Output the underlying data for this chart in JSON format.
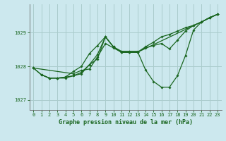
{
  "title": "Graphe pression niveau de la mer (hPa)",
  "bg_color": "#cce8ee",
  "grid_color": "#aacccc",
  "line_color": "#1a6620",
  "text_color": "#1a6620",
  "xlim": [
    -0.5,
    23.5
  ],
  "ylim": [
    1026.7,
    1029.85
  ],
  "yticks": [
    1027,
    1028,
    1029
  ],
  "xticks": [
    0,
    1,
    2,
    3,
    4,
    5,
    6,
    7,
    8,
    9,
    10,
    11,
    12,
    13,
    14,
    15,
    16,
    17,
    18,
    19,
    20,
    21,
    22,
    23
  ],
  "series": [
    {
      "x": [
        0,
        1,
        2,
        3,
        4,
        5,
        6,
        7,
        8,
        9,
        10,
        11,
        12,
        13,
        14,
        15,
        16,
        17,
        18,
        19,
        20,
        21,
        22,
        23
      ],
      "y": [
        1027.95,
        1027.75,
        1027.65,
        1027.65,
        1027.68,
        1027.72,
        1027.82,
        1028.05,
        1028.35,
        1028.88,
        1028.58,
        1028.42,
        1028.42,
        1028.42,
        1028.58,
        1028.72,
        1028.88,
        1028.95,
        1029.05,
        1029.15,
        1029.22,
        1029.32,
        1029.45,
        1029.55
      ]
    },
    {
      "x": [
        0,
        1,
        2,
        3,
        4,
        5,
        6,
        7,
        8,
        9,
        10,
        11,
        12,
        13,
        14,
        15,
        16,
        17,
        18,
        19,
        20,
        21,
        22,
        23
      ],
      "y": [
        1027.95,
        1027.75,
        1027.65,
        1027.65,
        1027.68,
        1027.85,
        1028.0,
        1028.38,
        1028.62,
        1028.88,
        1028.58,
        1028.45,
        1028.45,
        1028.45,
        1027.9,
        1027.55,
        1027.38,
        1027.38,
        1027.72,
        1028.32,
        1029.08,
        1029.32,
        1029.45,
        1029.55
      ]
    },
    {
      "x": [
        1,
        2,
        3,
        4,
        5,
        6,
        7,
        8,
        9,
        10,
        11,
        12,
        13,
        23
      ],
      "y": [
        1027.75,
        1027.65,
        1027.65,
        1027.65,
        1027.72,
        1027.78,
        1028.05,
        1028.22,
        1028.88,
        1028.58,
        1028.42,
        1028.42,
        1028.42,
        1029.55
      ]
    },
    {
      "x": [
        0,
        5,
        6,
        7,
        8,
        9,
        10,
        11,
        12,
        13,
        14,
        15,
        16,
        17,
        18,
        19,
        20,
        21,
        22,
        23
      ],
      "y": [
        1027.95,
        1027.78,
        1027.88,
        1027.92,
        1028.28,
        1028.68,
        1028.55,
        1028.42,
        1028.42,
        1028.42,
        1028.55,
        1028.62,
        1028.68,
        1028.52,
        1028.78,
        1029.05,
        1029.22,
        1029.32,
        1029.45,
        1029.55
      ]
    }
  ]
}
